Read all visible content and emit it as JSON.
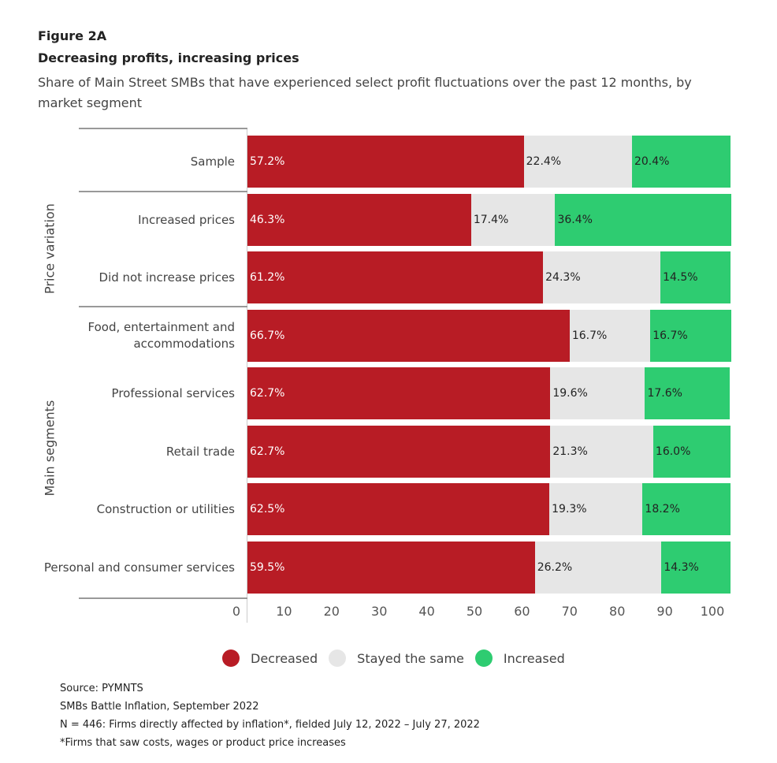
{
  "figure_label": "Figure 2A",
  "chart_data": {
    "type": "bar",
    "orientation": "horizontal-stacked",
    "title": "Decreasing profits, increasing prices",
    "subtitle": "Share of Main Street SMBs that have experienced select profit fluctuations over the past 12 months, by market segment",
    "xlim": [
      0,
      100
    ],
    "x_ticks": [
      "0",
      "10",
      "20",
      "30",
      "40",
      "50",
      "60",
      "70",
      "80",
      "90",
      "100"
    ],
    "legend_position": "bottom",
    "groups": [
      {
        "name": "",
        "rows": [
          0
        ]
      },
      {
        "name": "Price variation",
        "rows": [
          1,
          2
        ]
      },
      {
        "name": "Main segments",
        "rows": [
          3,
          4,
          5,
          6,
          7
        ]
      }
    ],
    "categories": [
      "Sample",
      "Increased prices",
      "Did not increase prices",
      "Food, entertainment and accommodations",
      "Professional services",
      "Retail trade",
      "Construction or utilities",
      "Personal and consumer services"
    ],
    "series": [
      {
        "name": "Decreased",
        "color": "#b81c25",
        "label_color": "#ffffff",
        "values": [
          57.2,
          46.3,
          61.2,
          66.7,
          62.7,
          62.7,
          62.5,
          59.5
        ],
        "labels": [
          "57.2%",
          "46.3%",
          "61.2%",
          "66.7%",
          "62.7%",
          "62.7%",
          "62.5%",
          "59.5%"
        ]
      },
      {
        "name": "Stayed the same",
        "color": "#e6e6e6",
        "label_color": "#222222",
        "values": [
          22.4,
          17.4,
          24.3,
          16.7,
          19.6,
          21.3,
          19.3,
          26.2
        ],
        "labels": [
          "22.4%",
          "17.4%",
          "24.3%",
          "16.7%",
          "19.6%",
          "21.3%",
          "19.3%",
          "26.2%"
        ]
      },
      {
        "name": "Increased",
        "color": "#2ecc71",
        "label_color": "#222222",
        "values": [
          20.4,
          36.4,
          14.5,
          16.7,
          17.6,
          16.0,
          18.2,
          14.3
        ],
        "labels": [
          "20.4%",
          "36.4%",
          "14.5%",
          "16.7%",
          "17.6%",
          "16.0%",
          "18.2%",
          "14.3%"
        ]
      }
    ]
  },
  "notes": [
    "Source: PYMNTS",
    "SMBs Battle Inflation, September 2022",
    "N = 446: Firms directly affected by inflation*, fielded July 12, 2022 – July 27, 2022",
    "*Firms that saw costs, wages or product price increases"
  ]
}
